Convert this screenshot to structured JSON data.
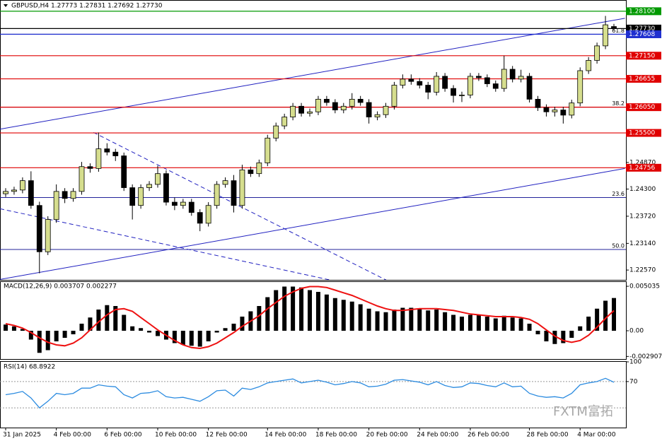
{
  "chart_data": [
    {
      "type": "candlestick",
      "title": "GBPUSD,H4  1.27773 1.27831 1.27692 1.27730",
      "categories": [
        "31 Jan 2025",
        null,
        null,
        null,
        null,
        null,
        "4 Feb 00:00",
        null,
        null,
        null,
        null,
        null,
        "6 Feb 00:00",
        null,
        null,
        null,
        null,
        null,
        "10 Feb 00:00",
        null,
        null,
        null,
        null,
        null,
        "12 Feb 00:00",
        null,
        null,
        null,
        null,
        null,
        null,
        "14 Feb 00:00",
        null,
        null,
        null,
        null,
        null,
        "18 Feb 00:00",
        null,
        null,
        null,
        null,
        null,
        "20 Feb 00:00",
        null,
        null,
        null,
        null,
        null,
        "24 Feb 00:00",
        null,
        null,
        null,
        null,
        null,
        "26 Feb 00:00",
        null,
        null,
        null,
        null,
        null,
        null,
        "28 Feb 00:00",
        null,
        null,
        null,
        null,
        null,
        "4 Mar 00:00",
        null,
        null,
        null,
        null
      ],
      "open": [
        1.242,
        1.2425,
        1.2428,
        1.2448,
        1.2395,
        1.2296,
        1.2365,
        1.2425,
        1.241,
        1.2425,
        1.2478,
        1.2474,
        1.2516,
        1.2509,
        1.2501,
        1.2433,
        1.2395,
        1.2433,
        1.244,
        1.2463,
        1.2402,
        1.2395,
        1.2402,
        1.238,
        1.2357,
        1.2395,
        1.244,
        1.2448,
        1.2395,
        1.2471,
        1.2463,
        1.2486,
        1.2539,
        1.2565,
        1.2584,
        1.2607,
        1.2592,
        1.2595,
        1.2622,
        1.2615,
        1.2599,
        1.2607,
        1.2622,
        1.2615,
        1.2584,
        1.2589,
        1.2607,
        1.2652,
        1.2665,
        1.266,
        1.2652,
        1.2637,
        1.2671,
        1.2645,
        1.263,
        1.2631,
        1.2671,
        1.2668,
        1.2655,
        1.2645,
        1.2686,
        1.2665,
        1.2671,
        1.2622,
        1.2604,
        1.2595,
        1.2599,
        1.2588,
        1.2614,
        1.2683,
        1.2705,
        1.2736,
        1.27773
      ],
      "high": [
        1.2432,
        1.2435,
        1.2455,
        1.2468,
        1.2403,
        1.2372,
        1.244,
        1.2432,
        1.2432,
        1.2488,
        1.2485,
        1.2551,
        1.2528,
        1.2516,
        1.2508,
        1.244,
        1.244,
        1.2447,
        1.248,
        1.247,
        1.2412,
        1.2409,
        1.2409,
        1.2387,
        1.2402,
        1.2447,
        1.2455,
        1.246,
        1.2482,
        1.2478,
        1.2493,
        1.2546,
        1.2572,
        1.2591,
        1.2614,
        1.2614,
        1.2602,
        1.2629,
        1.2629,
        1.2622,
        1.2614,
        1.2635,
        1.2629,
        1.2622,
        1.2596,
        1.2614,
        1.2659,
        1.2675,
        1.2675,
        1.2667,
        1.2659,
        1.268,
        1.2678,
        1.2652,
        1.2638,
        1.2678,
        1.2678,
        1.2675,
        1.2662,
        1.2715,
        1.2693,
        1.2685,
        1.2678,
        1.2629,
        1.2611,
        1.2606,
        1.2606,
        1.2621,
        1.269,
        1.2712,
        1.2743,
        1.28,
        1.27831
      ],
      "low": [
        1.2413,
        1.2418,
        1.2421,
        1.2388,
        1.225,
        1.2289,
        1.2358,
        1.24,
        1.2403,
        1.2418,
        1.2465,
        1.2467,
        1.2502,
        1.249,
        1.2426,
        1.2365,
        1.2388,
        1.2426,
        1.2433,
        1.2395,
        1.2385,
        1.2388,
        1.2373,
        1.234,
        1.235,
        1.2388,
        1.2433,
        1.238,
        1.2388,
        1.2456,
        1.2456,
        1.2479,
        1.2532,
        1.2558,
        1.2577,
        1.2585,
        1.2585,
        1.2588,
        1.2608,
        1.2592,
        1.2592,
        1.26,
        1.2608,
        1.257,
        1.2577,
        1.2582,
        1.26,
        1.2645,
        1.2653,
        1.2645,
        1.2622,
        1.263,
        1.2638,
        1.2615,
        1.2616,
        1.2624,
        1.2661,
        1.2648,
        1.2638,
        1.2638,
        1.2658,
        1.2658,
        1.2615,
        1.2597,
        1.2585,
        1.2585,
        1.257,
        1.2581,
        1.2607,
        1.2676,
        1.2698,
        1.2729,
        1.27692
      ],
      "close": [
        1.2425,
        1.2428,
        1.2448,
        1.2395,
        1.2296,
        1.2365,
        1.2425,
        1.241,
        1.2425,
        1.2478,
        1.2474,
        1.2516,
        1.2509,
        1.2501,
        1.2433,
        1.2395,
        1.2433,
        1.244,
        1.2463,
        1.2402,
        1.2395,
        1.2402,
        1.238,
        1.2357,
        1.2395,
        1.244,
        1.2448,
        1.2395,
        1.2471,
        1.2463,
        1.2486,
        1.2539,
        1.2565,
        1.2584,
        1.2607,
        1.2592,
        1.2595,
        1.2622,
        1.2615,
        1.2599,
        1.2607,
        1.2622,
        1.2615,
        1.2584,
        1.2589,
        1.2607,
        1.2652,
        1.2665,
        1.266,
        1.2652,
        1.2637,
        1.2671,
        1.2645,
        1.263,
        1.2631,
        1.2671,
        1.2668,
        1.2655,
        1.2645,
        1.2686,
        1.2665,
        1.2671,
        1.2622,
        1.2604,
        1.2595,
        1.2599,
        1.2588,
        1.2614,
        1.2683,
        1.2705,
        1.2736,
        1.2781,
        1.2773
      ],
      "up_color": "#d6de8e",
      "down_color": "#000000",
      "ylim": [
        1.2236,
        1.2834
      ],
      "yticks": [
        {
          "value": 1.2487,
          "label": "1.24870"
        },
        {
          "value": 1.243,
          "label": "1.24300"
        },
        {
          "value": 1.2372,
          "label": "1.23720"
        },
        {
          "value": 1.2314,
          "label": "1.23140"
        },
        {
          "value": 1.2257,
          "label": "1.22570"
        }
      ],
      "levels": [
        {
          "value": 1.281,
          "label": "1.28100",
          "color": "#009900"
        },
        {
          "value": 1.2773,
          "label": "1.27730",
          "color": "#000000"
        },
        {
          "value": 1.27608,
          "label": "1.27608",
          "color": "#1f2fd0"
        },
        {
          "value": 1.2715,
          "label": "1.27150",
          "color": "#e00000"
        },
        {
          "value": 1.26655,
          "label": "1.26655",
          "color": "#e00000"
        },
        {
          "value": 1.2605,
          "label": "1.26050",
          "color": "#e00000"
        },
        {
          "value": 1.255,
          "label": "1.25500",
          "color": "#e00000"
        },
        {
          "value": 1.24756,
          "label": "1.24756",
          "color": "#e00000"
        }
      ],
      "fib_levels": [
        {
          "value": 1.2761,
          "label": "61.8"
        },
        {
          "value": 1.2605,
          "label": "38.2"
        },
        {
          "value": 1.2412,
          "label": "23.6"
        },
        {
          "value": 1.2301,
          "label": "50.0"
        }
      ],
      "fib_color": "#23239a",
      "trendlines": [
        {
          "x": [
            -0.67,
            73.3
          ],
          "y": [
            1.2558,
            1.2795
          ],
          "color": "#2020c0",
          "dashed": false
        },
        {
          "x": [
            -0.67,
            73.3
          ],
          "y": [
            1.2237,
            1.2474
          ],
          "color": "#2020c0",
          "dashed": false
        },
        {
          "x": [
            10.4,
            45.1
          ],
          "y": [
            1.2551,
            1.2235
          ],
          "color": "#2020c0",
          "dashed": true
        },
        {
          "x": [
            -0.67,
            38.6
          ],
          "y": [
            1.2388,
            1.2235
          ],
          "color": "#2020c0",
          "dashed": true
        }
      ]
    },
    {
      "type": "macd",
      "title": "MACD(12,26,9) 0.003707 0.002277",
      "histogram": [
        0.0007,
        0.0005,
        0.0002,
        -0.001,
        -0.0025,
        -0.0022,
        -0.0012,
        -0.0008,
        -0.0004,
        0.0008,
        0.0015,
        0.0024,
        0.0029,
        0.0028,
        0.0018,
        0.0005,
        0.0003,
        -0.0002,
        -0.0006,
        -0.001,
        -0.0014,
        -0.0016,
        -0.0017,
        -0.0018,
        -0.0012,
        -0.0002,
        0.0003,
        0.0008,
        0.0016,
        0.0022,
        0.0028,
        0.0038,
        0.0046,
        0.005,
        0.005,
        0.0049,
        0.0046,
        0.0044,
        0.0041,
        0.0037,
        0.0035,
        0.0033,
        0.003,
        0.0025,
        0.0022,
        0.0021,
        0.0024,
        0.0026,
        0.0026,
        0.0025,
        0.0023,
        0.0024,
        0.0021,
        0.0018,
        0.0016,
        0.0018,
        0.0018,
        0.0016,
        0.0014,
        0.0017,
        0.0015,
        0.0014,
        0.0008,
        -0.0004,
        -0.0012,
        -0.0015,
        -0.0014,
        -0.0008,
        0.0005,
        0.0016,
        0.0025,
        0.0034,
        0.003707
      ],
      "signal": [
        0.0008,
        0.0006,
        0.0003,
        -0.0002,
        -0.0008,
        -0.0013,
        -0.0016,
        -0.0017,
        -0.0014,
        -0.0008,
        0.0001,
        0.001,
        0.0018,
        0.0024,
        0.0025,
        0.0022,
        0.0015,
        0.0008,
        0.0001,
        -0.0005,
        -0.0011,
        -0.0016,
        -0.0019,
        -0.002,
        -0.0018,
        -0.0014,
        -0.0008,
        -0.0002,
        0.0005,
        0.0011,
        0.0017,
        0.0025,
        0.0032,
        0.0039,
        0.0044,
        0.0048,
        0.005,
        0.005,
        0.0049,
        0.0046,
        0.0043,
        0.004,
        0.0036,
        0.0032,
        0.0028,
        0.0025,
        0.0023,
        0.0023,
        0.0024,
        0.0025,
        0.0025,
        0.0025,
        0.0024,
        0.0023,
        0.0021,
        0.0019,
        0.0018,
        0.0017,
        0.0016,
        0.0016,
        0.0016,
        0.0015,
        0.0013,
        0.0008,
        0.0001,
        -0.0006,
        -0.0011,
        -0.0013,
        -0.0011,
        -0.0005,
        0.0004,
        0.0014,
        0.002277
      ],
      "histogram_color": "#000000",
      "signal_color": "#ee1111",
      "ylim": [
        -0.0032,
        0.0056
      ],
      "yticks": [
        0.005035,
        {
          "value": 0,
          "label": "0.00"
        },
        -0.002907
      ]
    },
    {
      "type": "line",
      "title": "RSI(14) 68.8922",
      "values": [
        50,
        52,
        55,
        45,
        30,
        40,
        52,
        50,
        52,
        60,
        60,
        65,
        63,
        62,
        50,
        45,
        52,
        53,
        56,
        47,
        45,
        46,
        43,
        40,
        47,
        56,
        57,
        48,
        60,
        58,
        62,
        68,
        70,
        72,
        74,
        68,
        70,
        72,
        69,
        65,
        67,
        70,
        68,
        62,
        63,
        66,
        72,
        73,
        71,
        69,
        65,
        70,
        64,
        61,
        62,
        68,
        67,
        64,
        62,
        68,
        62,
        63,
        52,
        48,
        46,
        47,
        45,
        52,
        65,
        68,
        70,
        75,
        68.8922
      ],
      "color": "#2b8be0",
      "ylim": [
        0,
        100
      ],
      "yticks": [
        100,
        70
      ],
      "levels": [
        70,
        30
      ]
    }
  ],
  "watermark": "FXTM富拓"
}
